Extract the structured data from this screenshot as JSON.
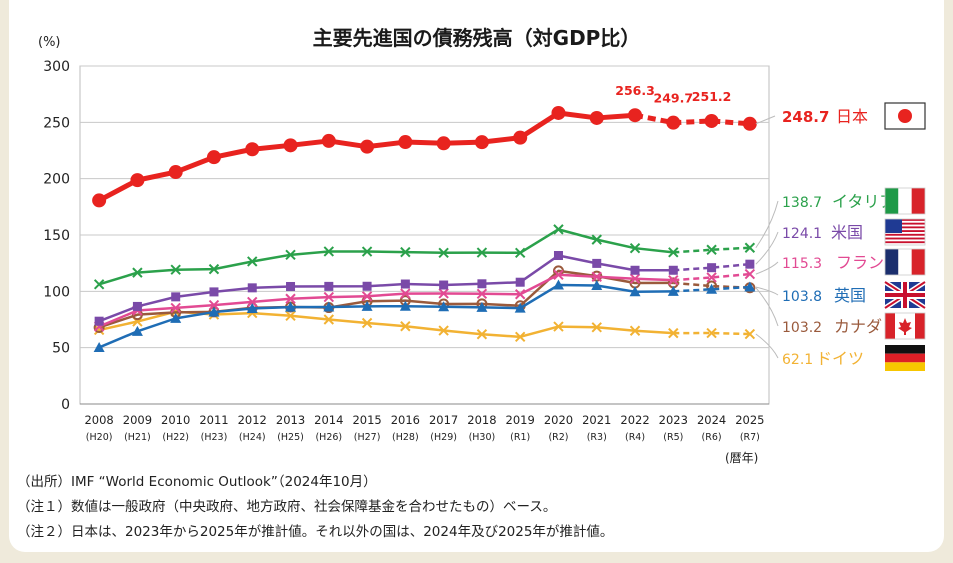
{
  "title": "主要先進国の債務残高（対GDP比）",
  "notes": {
    "source": "（出所）IMF “World Economic Outlook”（2024年10月）",
    "note1": "（注１）数値は一般政府（中央政府、地方政府、社会保障基金を合わせたもの）ベース。",
    "note2": "（注２）日本は、2023年から2025年が推計値。それ以外の国は、2024年及び2025年が推計値。"
  },
  "chart_data": {
    "type": "line",
    "title": "主要先進国の債務残高（対GDP比）",
    "ylabel": "(%)",
    "xlabel": "(暦年)",
    "ylim": [
      0,
      300
    ],
    "yticks": [
      0,
      50,
      100,
      150,
      200,
      250,
      300
    ],
    "grid": true,
    "categories": [
      "2008",
      "2009",
      "2010",
      "2011",
      "2012",
      "2013",
      "2014",
      "2015",
      "2016",
      "2017",
      "2018",
      "2019",
      "2020",
      "2021",
      "2022",
      "2023",
      "2024",
      "2025"
    ],
    "category_sublabels": [
      "(H20)",
      "(H21)",
      "(H22)",
      "(H23)",
      "(H24)",
      "(H25)",
      "(H26)",
      "(H27)",
      "(H28)",
      "(H29)",
      "(H30)",
      "(R1)",
      "(R2)",
      "(R3)",
      "(R4)",
      "(R5)",
      "(R6)",
      "(R7)"
    ],
    "series": [
      {
        "name": "日本",
        "label": "248.7",
        "color": "#e8231f",
        "marker": "circle",
        "estimate_from": 2023,
        "values": [
          180.7,
          198.7,
          205.9,
          219.1,
          226.1,
          229.6,
          233.5,
          228.4,
          232.5,
          231.4,
          232.4,
          236.4,
          258.3,
          253.9,
          256.3,
          249.7,
          251.2,
          248.7
        ],
        "point_labels": {
          "2022": "256.3",
          "2023": "249.7",
          "2024": "251.2"
        }
      },
      {
        "name": "イタリア",
        "label": "138.7",
        "color": "#2ba14b",
        "marker": "x",
        "estimate_from": 2024,
        "values": [
          106.2,
          116.6,
          119.2,
          119.7,
          126.5,
          132.4,
          135.4,
          135.3,
          134.8,
          134.2,
          134.4,
          134.2,
          155.0,
          145.9,
          138.3,
          134.6,
          136.9,
          138.7
        ]
      },
      {
        "name": "米国",
        "label": "124.1",
        "color": "#7a4aa8",
        "marker": "square",
        "estimate_from": 2024,
        "values": [
          73.5,
          86.6,
          95.1,
          99.5,
          103.1,
          104.3,
          104.4,
          104.5,
          106.5,
          105.6,
          106.7,
          108.1,
          131.8,
          124.8,
          118.7,
          118.7,
          121.0,
          124.1
        ]
      },
      {
        "name": "フランス",
        "label": "115.3",
        "color": "#e24a93",
        "marker": "x",
        "estimate_from": 2024,
        "values": [
          68.8,
          83.0,
          85.3,
          87.8,
          90.6,
          93.4,
          94.9,
          95.6,
          98.0,
          98.1,
          97.8,
          97.4,
          114.7,
          112.9,
          111.2,
          109.9,
          112.3,
          115.3
        ]
      },
      {
        "name": "英国",
        "label": "103.8",
        "color": "#1f6db5",
        "marker": "triangle",
        "estimate_from": 2024,
        "values": [
          50.2,
          64.5,
          76.0,
          81.6,
          84.8,
          86.0,
          86.1,
          86.7,
          86.8,
          86.3,
          85.8,
          85.1,
          105.6,
          105.2,
          99.6,
          100.0,
          101.8,
          103.8
        ]
      },
      {
        "name": "カナダ",
        "label": "103.2",
        "color": "#9a5a3c",
        "marker": "ring",
        "estimate_from": 2024,
        "values": [
          67.9,
          79.3,
          81.3,
          81.8,
          85.4,
          86.1,
          85.6,
          91.2,
          91.8,
          88.8,
          88.9,
          87.2,
          118.2,
          113.5,
          107.4,
          107.5,
          104.7,
          103.2
        ]
      },
      {
        "name": "ドイツ",
        "label": "62.1",
        "color": "#f2b233",
        "marker": "x",
        "estimate_from": 2024,
        "values": [
          65.7,
          73.2,
          82.0,
          79.4,
          80.7,
          78.3,
          75.0,
          71.9,
          69.0,
          65.2,
          61.9,
          59.6,
          68.7,
          68.1,
          65.0,
          62.9,
          63.0,
          62.1
        ]
      }
    ],
    "legend_placement": "right",
    "legend_icons": [
      "japan-flag-icon",
      "italy-flag-icon",
      "usa-flag-icon",
      "france-flag-icon",
      "uk-flag-icon",
      "canada-flag-icon",
      "germany-flag-icon"
    ]
  }
}
